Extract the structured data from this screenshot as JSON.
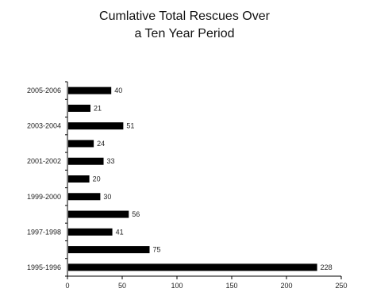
{
  "chart_data": {
    "type": "bar",
    "orientation": "horizontal",
    "title_lines": [
      "Cumlative Total Rescues Over",
      "a Ten Year Period"
    ],
    "categories": [
      "2005-2006",
      "",
      "2003-2004",
      "",
      "2001-2002",
      "",
      "1999-2000",
      "",
      "1997-1998",
      "",
      "1995-1996"
    ],
    "values": [
      40,
      21,
      51,
      24,
      33,
      20,
      30,
      56,
      41,
      75,
      228
    ],
    "xlim": [
      0,
      250
    ],
    "xticks": [
      0,
      50,
      100,
      150,
      200,
      250
    ],
    "xlabel": "",
    "ylabel": "",
    "grid": false,
    "bar_color": "#000000"
  }
}
